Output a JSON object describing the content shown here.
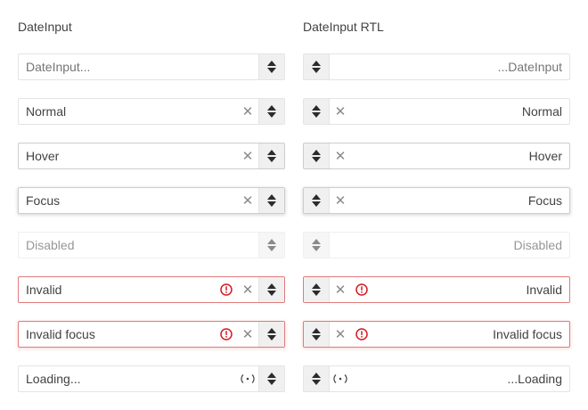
{
  "columns": {
    "ltr": {
      "heading": "DateInput"
    },
    "rtl": {
      "heading": "DateInput RTL"
    }
  },
  "fields": {
    "ltr": [
      {
        "state": "placeholder",
        "placeholder": "DateInput..."
      },
      {
        "state": "normal",
        "value": "Normal"
      },
      {
        "state": "hover",
        "value": "Hover"
      },
      {
        "state": "focus",
        "value": "Focus"
      },
      {
        "state": "disabled",
        "value": "Disabled"
      },
      {
        "state": "invalid",
        "value": "Invalid"
      },
      {
        "state": "invalid-focus",
        "value": "Invalid focus"
      },
      {
        "state": "loading",
        "value": "Loading..."
      }
    ],
    "rtl": [
      {
        "state": "placeholder",
        "placeholder": "...DateInput"
      },
      {
        "state": "normal",
        "value": "Normal"
      },
      {
        "state": "hover",
        "value": "Hover"
      },
      {
        "state": "focus",
        "value": "Focus"
      },
      {
        "state": "disabled",
        "value": "Disabled"
      },
      {
        "state": "invalid",
        "value": "Invalid"
      },
      {
        "state": "invalid-focus",
        "value": "Invalid focus"
      },
      {
        "state": "loading",
        "value": "...Loading"
      }
    ]
  },
  "icons": {
    "clear": "close-icon",
    "error": "exclamation-circle-icon",
    "loading": "loading-indicator-icon",
    "spin_up": "caret-up-icon",
    "spin_down": "caret-down-icon"
  },
  "colors": {
    "error": "#d51923",
    "invalid_border": "#e07a7a",
    "spinner_bg": "#f0f0f0"
  }
}
